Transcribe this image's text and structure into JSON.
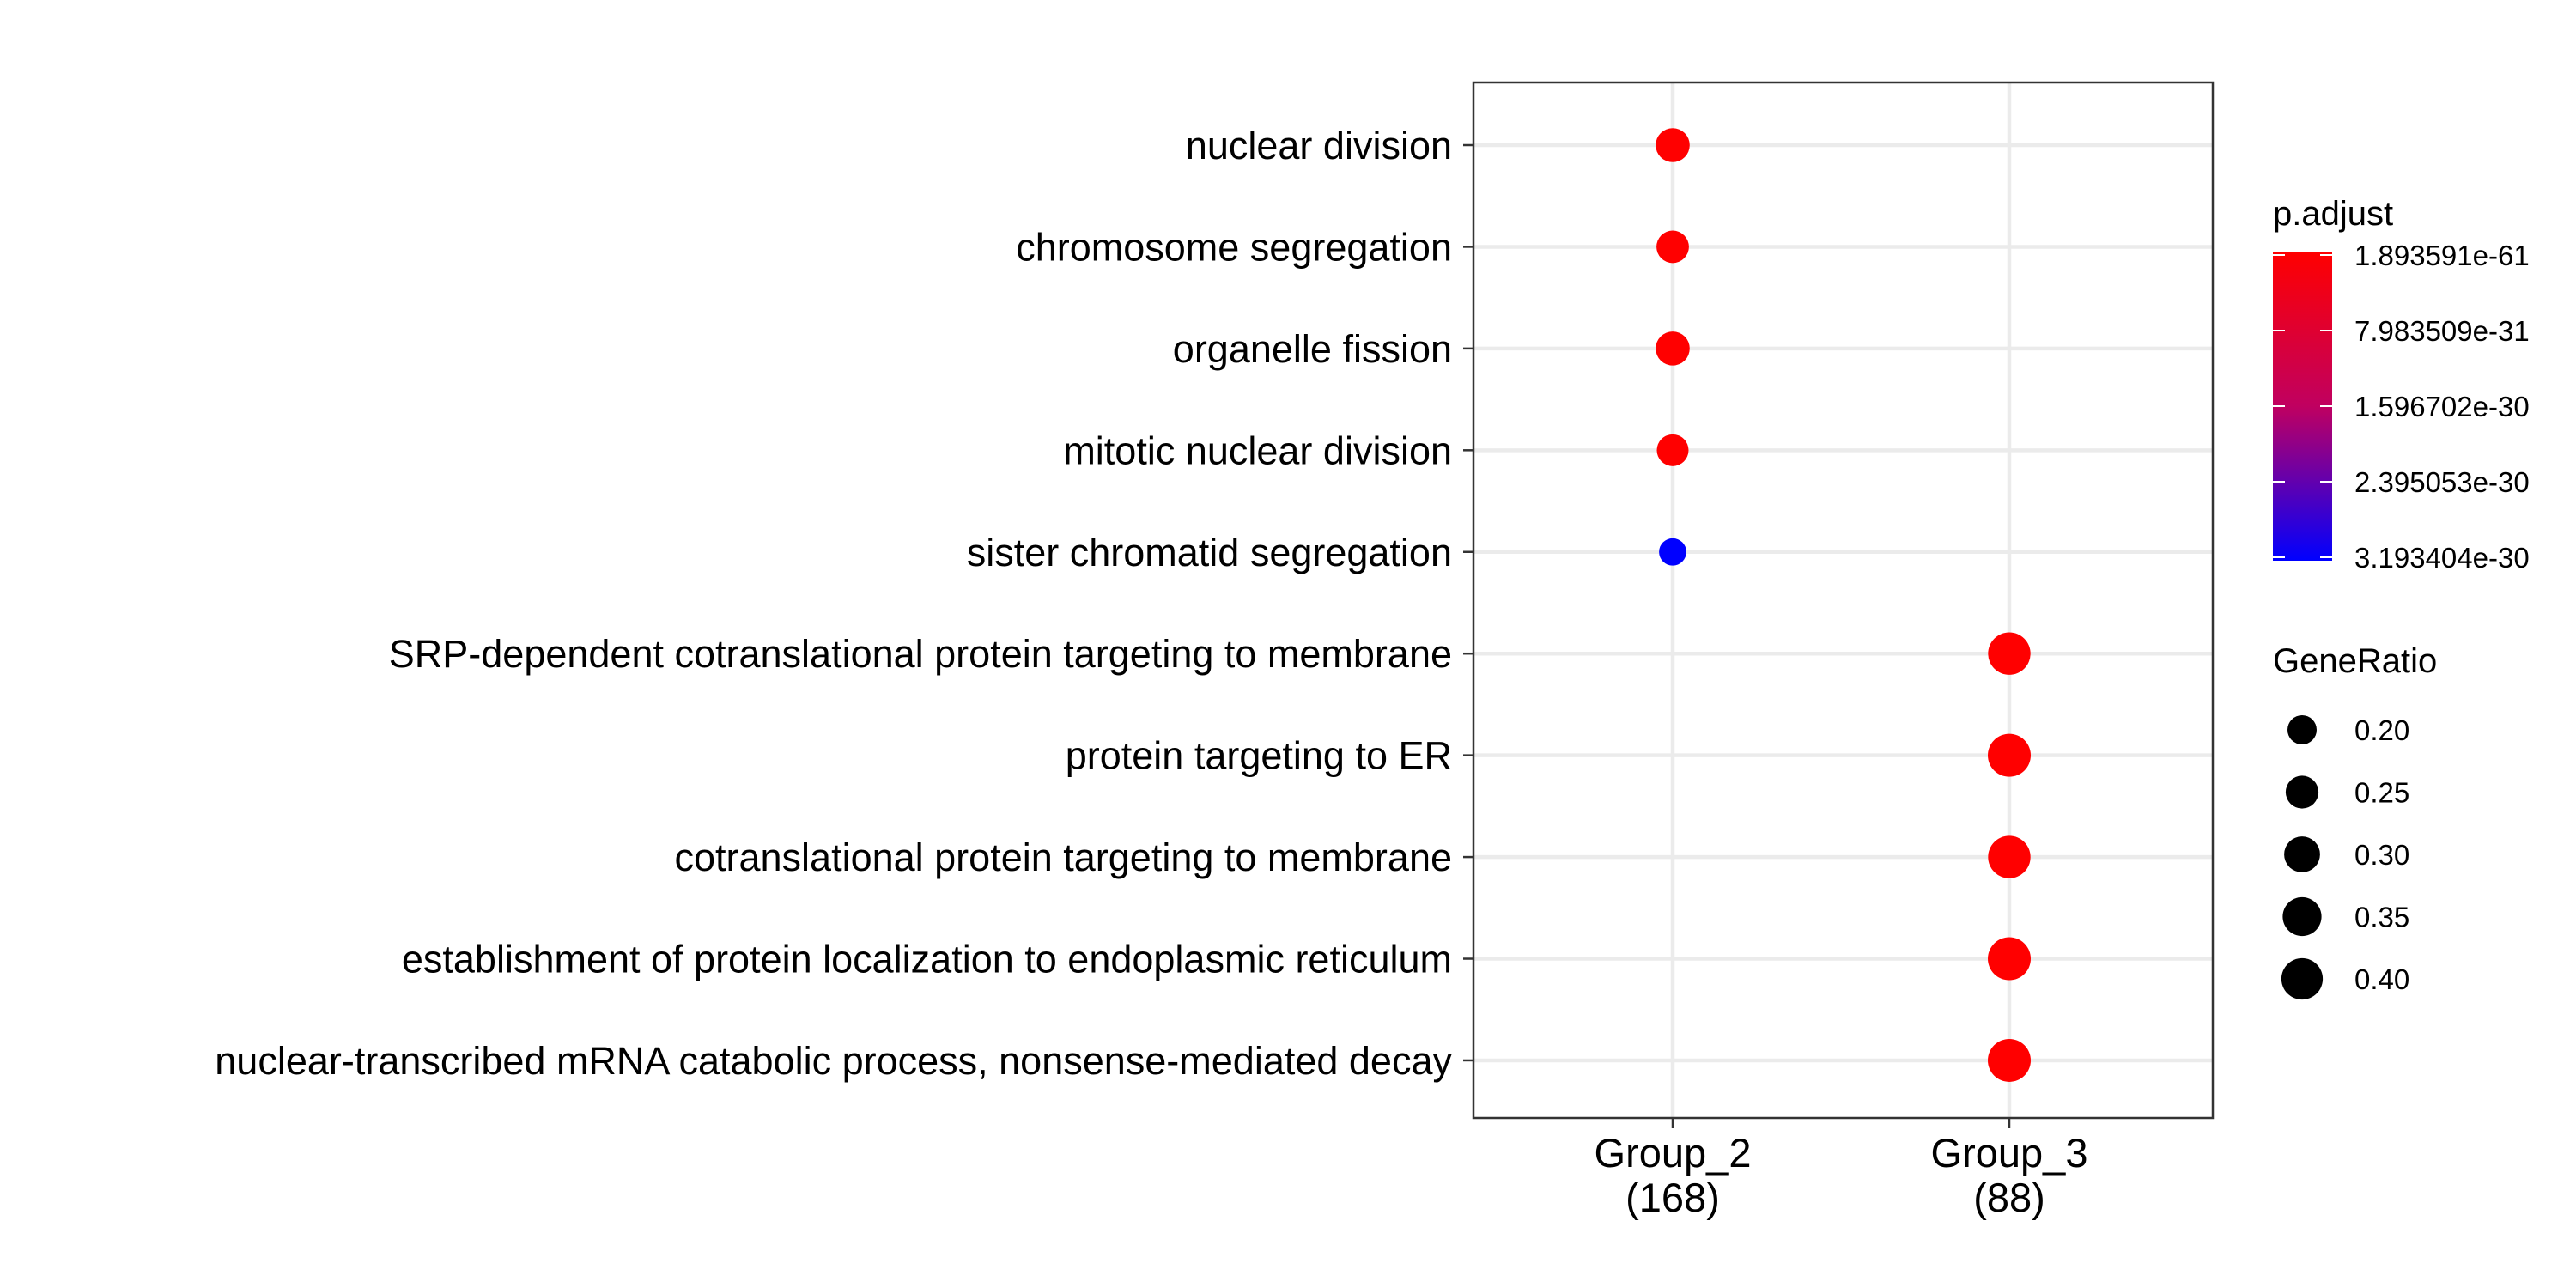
{
  "chart_data": {
    "type": "scatter",
    "categories_x": [
      "Group_2\n(168)",
      "Group_3\n(88)"
    ],
    "categories_y": [
      "nuclear division",
      "chromosome segregation",
      "organelle fission",
      "mitotic nuclear division",
      "sister chromatid segregation",
      "SRP-dependent cotranslational protein targeting to membrane",
      "protein targeting to ER",
      "cotranslational protein targeting to membrane",
      "establishment of protein localization to endoplasmic reticulum",
      "nuclear-transcribed mRNA catabolic process, nonsense-mediated decay"
    ],
    "points": [
      {
        "x": "Group_2\n(168)",
        "y": "nuclear division",
        "gene_ratio": 0.27,
        "p_adjust": 1.9e-61
      },
      {
        "x": "Group_2\n(168)",
        "y": "chromosome segregation",
        "gene_ratio": 0.245,
        "p_adjust": 1.9e-61
      },
      {
        "x": "Group_2\n(168)",
        "y": "organelle fission",
        "gene_ratio": 0.27,
        "p_adjust": 1.9e-61
      },
      {
        "x": "Group_2\n(168)",
        "y": "mitotic nuclear division",
        "gene_ratio": 0.235,
        "p_adjust": 1.9e-61
      },
      {
        "x": "Group_2\n(168)",
        "y": "sister chromatid segregation",
        "gene_ratio": 0.175,
        "p_adjust": 3.19e-30
      },
      {
        "x": "Group_3\n(88)",
        "y": "SRP-dependent cotranslational protein targeting to membrane",
        "gene_ratio": 0.42,
        "p_adjust": 1.9e-61
      },
      {
        "x": "Group_3\n(88)",
        "y": "protein targeting to ER",
        "gene_ratio": 0.43,
        "p_adjust": 1.9e-61
      },
      {
        "x": "Group_3\n(88)",
        "y": "cotranslational protein targeting to membrane",
        "gene_ratio": 0.42,
        "p_adjust": 1.9e-61
      },
      {
        "x": "Group_3\n(88)",
        "y": "establishment of protein localization to endoplasmic reticulum",
        "gene_ratio": 0.43,
        "p_adjust": 1.9e-61
      },
      {
        "x": "Group_3\n(88)",
        "y": "nuclear-transcribed mRNA catabolic process, nonsense-mediated decay",
        "gene_ratio": 0.43,
        "p_adjust": 1.9e-61
      }
    ],
    "color_legend": {
      "title": "p.adjust",
      "ticks": [
        "1.893591e-61",
        "7.983509e-31",
        "1.596702e-30",
        "2.395053e-30",
        "3.193404e-30"
      ],
      "low_color": "#ff0000",
      "high_color": "#0000ff"
    },
    "size_legend": {
      "title": "GeneRatio",
      "values": [
        0.2,
        0.25,
        0.3,
        0.35,
        0.4
      ],
      "labels": [
        "0.20",
        "0.25",
        "0.30",
        "0.35",
        "0.40"
      ]
    },
    "grid": true,
    "legend_position": "right"
  }
}
